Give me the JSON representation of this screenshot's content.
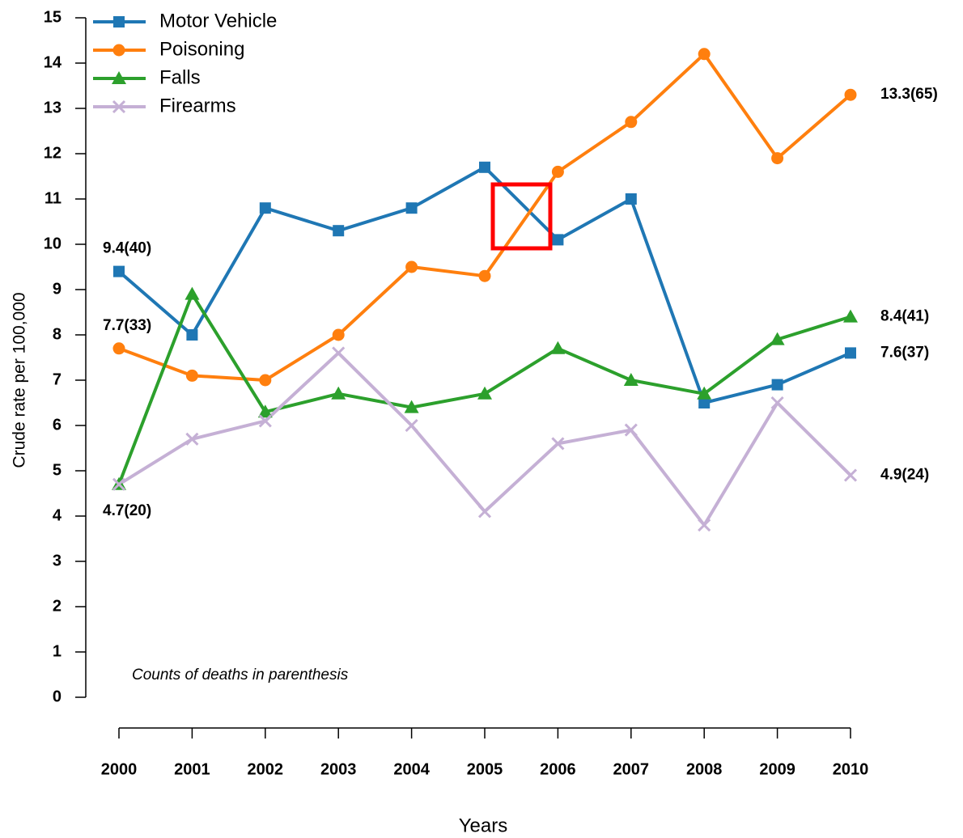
{
  "chart_data": {
    "type": "line",
    "x_label": "Years",
    "y_label": "Crude rate per 100,000",
    "categories": [
      "2000",
      "2001",
      "2002",
      "2003",
      "2004",
      "2005",
      "2006",
      "2007",
      "2008",
      "2009",
      "2010"
    ],
    "series": [
      {
        "name": "Motor Vehicle",
        "color": "#1f77b4",
        "marker": "square",
        "values": [
          9.4,
          8.0,
          10.8,
          10.3,
          10.8,
          11.7,
          10.1,
          11.0,
          6.5,
          6.9,
          7.6
        ],
        "value_labels": [
          "9.4(40)",
          null,
          null,
          null,
          null,
          null,
          null,
          null,
          null,
          null,
          "7.6(37)"
        ]
      },
      {
        "name": "Poisoning",
        "color": "#ff7f0e",
        "marker": "circle",
        "values": [
          7.7,
          7.1,
          7.0,
          8.0,
          9.5,
          9.3,
          11.6,
          12.7,
          14.2,
          11.9,
          13.3
        ],
        "value_labels": [
          "7.7(33)",
          null,
          null,
          null,
          null,
          null,
          null,
          null,
          null,
          null,
          "13.3(65)"
        ]
      },
      {
        "name": "Falls",
        "color": "#2ca02c",
        "marker": "triangle",
        "values": [
          4.7,
          8.9,
          6.3,
          6.7,
          6.4,
          6.7,
          7.7,
          7.0,
          6.7,
          7.9,
          8.4
        ],
        "value_labels": [
          "4.7(20)",
          null,
          null,
          null,
          null,
          null,
          null,
          null,
          null,
          null,
          "8.4(41)"
        ]
      },
      {
        "name": "Firearms",
        "color": "#c5b0d5",
        "marker": "x",
        "values": [
          4.7,
          5.7,
          6.1,
          7.6,
          6.0,
          4.1,
          5.6,
          5.9,
          3.8,
          6.5,
          4.9
        ],
        "value_labels": [
          null,
          null,
          null,
          null,
          null,
          null,
          null,
          null,
          null,
          null,
          "4.9(24)"
        ]
      }
    ],
    "ylim": [
      0,
      15
    ],
    "yticks": [
      0,
      1,
      2,
      3,
      4,
      5,
      6,
      7,
      8,
      9,
      10,
      11,
      12,
      13,
      14,
      15
    ],
    "legend": "top-left",
    "annotations": [
      "Counts of deaths in parenthesis"
    ]
  }
}
